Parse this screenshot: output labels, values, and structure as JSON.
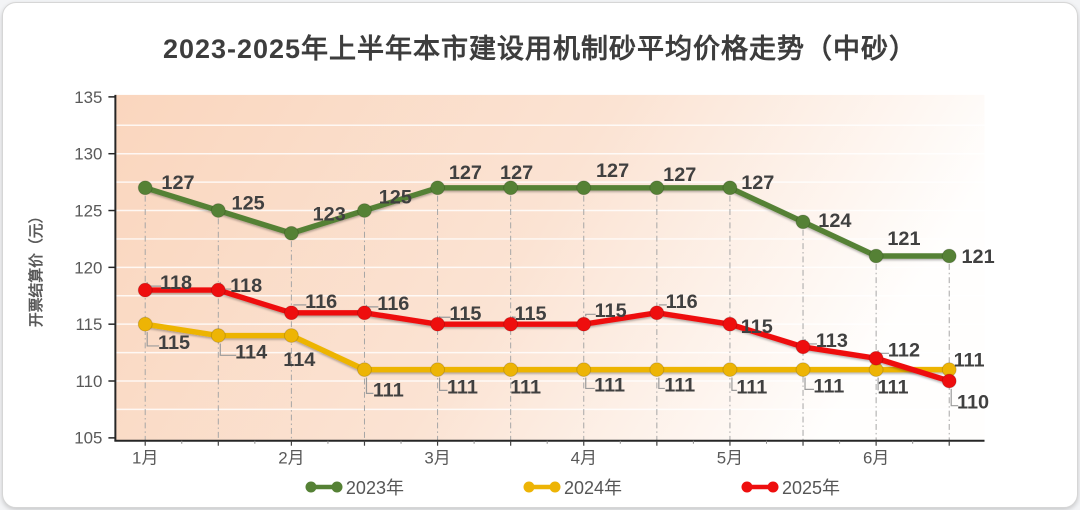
{
  "chart_data": {
    "type": "line",
    "title": "2023-2025年上半年本市建设用机制砂平均价格走势（中砂）",
    "ylabel": "开票结算价（元）",
    "ylim": [
      105,
      135
    ],
    "ytick_step": 5,
    "ytick_labels": [
      "105",
      "110",
      "115",
      "120",
      "125",
      "130",
      "135"
    ],
    "x_tick_labels": [
      "1月",
      "2月",
      "3月",
      "4月",
      "5月",
      "6月"
    ],
    "points_per_month": 2,
    "grid": true,
    "legend_position": "bottom",
    "series": [
      {
        "name": "2023年",
        "color": "#558135",
        "values": [
          127,
          125,
          123,
          125,
          127,
          127,
          127,
          127,
          127,
          124,
          121,
          121
        ]
      },
      {
        "name": "2024年",
        "color": "#EDB405",
        "values": [
          115,
          114,
          114,
          111,
          111,
          111,
          111,
          111,
          111,
          111,
          111,
          111
        ]
      },
      {
        "name": "2025年",
        "color": "#EE0E0E",
        "values": [
          118,
          118,
          116,
          116,
          115,
          115,
          115,
          116,
          115,
          113,
          112,
          110
        ]
      }
    ],
    "colors": {
      "plot_bg_start": "#FAD6BE",
      "plot_bg_mid": "#FBE3D3",
      "plot_bg_end": "#FFFEFD",
      "gridline": "#FFFFFF",
      "drop_line": "#A6A6A6",
      "axis": "#262626",
      "tick_label": "#595959",
      "data_label": "#404040",
      "leader_line": "#9B9B9B"
    }
  }
}
